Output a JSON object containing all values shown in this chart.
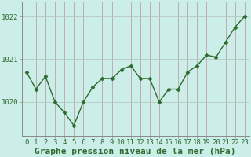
{
  "x": [
    0,
    1,
    2,
    3,
    4,
    5,
    6,
    7,
    8,
    9,
    10,
    11,
    12,
    13,
    14,
    15,
    16,
    17,
    18,
    19,
    20,
    21,
    22,
    23
  ],
  "y": [
    1020.7,
    1020.3,
    1020.6,
    1020.0,
    1019.75,
    1019.45,
    1020.0,
    1020.35,
    1020.55,
    1020.55,
    1020.75,
    1020.85,
    1020.55,
    1020.55,
    1020.0,
    1020.3,
    1020.3,
    1020.7,
    1020.85,
    1021.1,
    1021.05,
    1021.4,
    1021.75,
    1022.0
  ],
  "line_color": "#2d6a2d",
  "marker": "D",
  "marker_size": 2.5,
  "bg_color": "#cceee8",
  "grid_color_v": "#c0a0a8",
  "grid_color_h": "#b8c8c0",
  "xlabel": "Graphe pression niveau de la mer (hPa)",
  "xlabel_fontsize": 8,
  "yticks": [
    1020,
    1021,
    1022
  ],
  "ylim": [
    1019.2,
    1022.35
  ],
  "xlim": [
    -0.5,
    23.5
  ],
  "xtick_labels": [
    "0",
    "1",
    "2",
    "3",
    "4",
    "5",
    "6",
    "7",
    "8",
    "9",
    "10",
    "11",
    "12",
    "13",
    "14",
    "15",
    "16",
    "17",
    "18",
    "19",
    "20",
    "21",
    "22",
    "23"
  ],
  "tick_fontsize": 6.5,
  "linewidth": 1.0,
  "spine_color": "#888888"
}
